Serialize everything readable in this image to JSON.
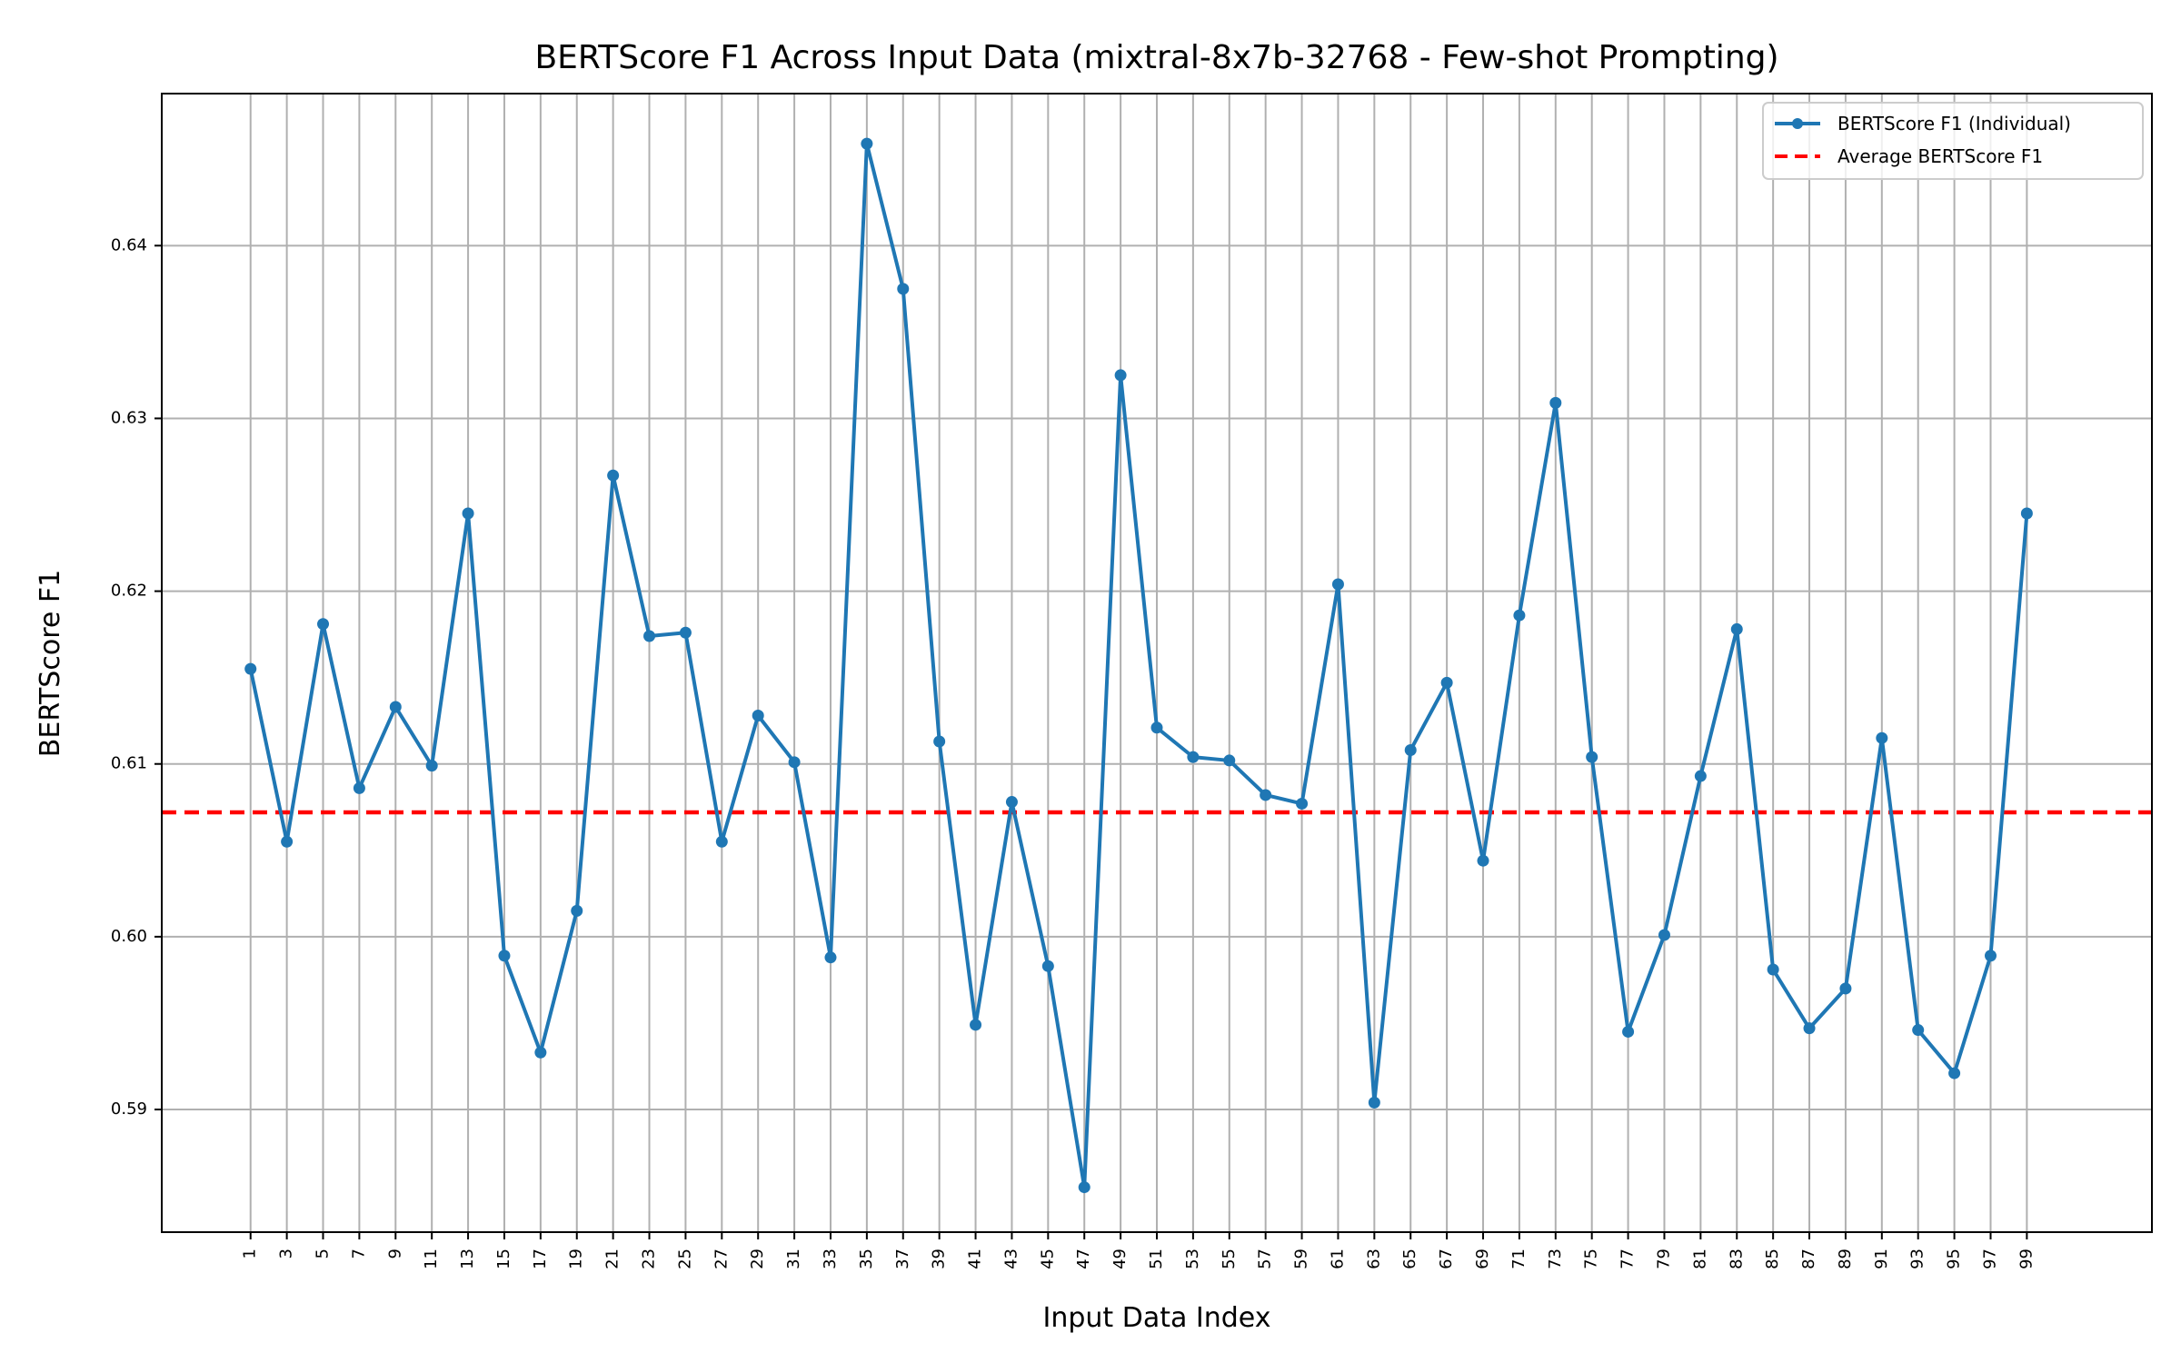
{
  "chart_data": {
    "type": "line",
    "title": "BERTScore F1 Across Input Data (mixtral-8x7b-32768 - Few-shot Prompting)",
    "xlabel": "Input Data Index",
    "ylabel": "BERTScore F1",
    "x": [
      1,
      2,
      3,
      4,
      5,
      6,
      7,
      8,
      9,
      10,
      11,
      12,
      13,
      14,
      15,
      16,
      17,
      18,
      19,
      20,
      21,
      22,
      23,
      24,
      25,
      26,
      27,
      28,
      29,
      30,
      31,
      32,
      33,
      34,
      35,
      36,
      37,
      38,
      39,
      40,
      41,
      42,
      43,
      44,
      45,
      46,
      47,
      48,
      49,
      50
    ],
    "x_ticks": [
      "1",
      "3",
      "5",
      "7",
      "9",
      "11",
      "13",
      "15",
      "17",
      "19",
      "21",
      "23",
      "25",
      "27",
      "29",
      "31",
      "33",
      "35",
      "37",
      "39",
      "41",
      "43",
      "45",
      "47",
      "49",
      "51",
      "53",
      "55",
      "57",
      "59",
      "61",
      "63",
      "65",
      "67",
      "69",
      "71",
      "73",
      "75",
      "77",
      "79",
      "81",
      "83",
      "85",
      "87",
      "89",
      "91",
      "93",
      "95",
      "97",
      "99"
    ],
    "xlim": [
      -1.45,
      53.45
    ],
    "y_ticks": [
      0.59,
      0.6,
      0.61,
      0.62,
      0.63,
      0.64
    ],
    "y_tick_labels": [
      "0.59",
      "0.60",
      "0.61",
      "0.62",
      "0.63",
      "0.64"
    ],
    "ylim": [
      0.5829,
      0.6488
    ],
    "grid": true,
    "legend_position": "top-right",
    "series": [
      {
        "name": "BERTScore F1 (Individual)",
        "color": "#1f77b4",
        "style": "line-with-markers",
        "values": [
          0.6155,
          0.6055,
          0.6181,
          0.6086,
          0.6133,
          0.6099,
          0.6245,
          0.5989,
          0.5933,
          0.6015,
          0.6267,
          0.6174,
          0.6176,
          0.6055,
          0.6128,
          0.6101,
          0.5988,
          0.6459,
          0.6375,
          0.6113,
          0.5949,
          0.6078,
          0.5983,
          0.5855,
          0.6325,
          0.6121,
          0.6104,
          0.6102,
          0.6082,
          0.6077,
          0.6204,
          0.5904,
          0.6108,
          0.6147,
          0.6044,
          0.6186,
          0.6309,
          0.6104,
          0.5945,
          0.6001,
          0.6093,
          0.6178,
          0.5981,
          0.5947,
          0.597,
          0.6115,
          0.5946,
          0.5921,
          0.5989,
          0.6245
        ]
      },
      {
        "name": "Average BERTScore F1",
        "color": "#ff0000",
        "style": "dashed-horizontal",
        "value": 0.6072
      }
    ]
  }
}
